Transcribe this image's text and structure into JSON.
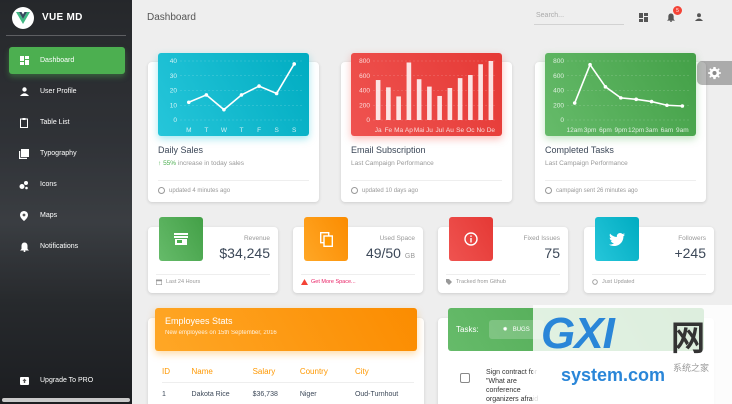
{
  "brand": {
    "name": "VUE MD"
  },
  "sidebar": {
    "items": [
      {
        "label": "Dashboard",
        "icon": "dashboard-icon",
        "active": true
      },
      {
        "label": "User Profile",
        "icon": "person-icon",
        "active": false
      },
      {
        "label": "Table List",
        "icon": "clipboard-icon",
        "active": false
      },
      {
        "label": "Typography",
        "icon": "library-books-icon",
        "active": false
      },
      {
        "label": "Icons",
        "icon": "bubble-chart-icon",
        "active": false
      },
      {
        "label": "Maps",
        "icon": "location-icon",
        "active": false
      },
      {
        "label": "Notifications",
        "icon": "bell-icon",
        "active": false
      }
    ],
    "upgrade": {
      "label": "Upgrade To PRO",
      "icon": "unarchive-icon"
    }
  },
  "topbar": {
    "title": "Dashboard",
    "search_placeholder": "Search...",
    "notification_count": "5"
  },
  "charts": [
    {
      "title": "Daily Sales",
      "sub_highlight": "55%",
      "sub_text": "increase in today sales",
      "footer": "updated 4 minutes ago",
      "color": "#26c6da"
    },
    {
      "title": "Email Subscription",
      "sub_text": "Last Campaign Performance",
      "footer": "updated 10 days ago",
      "color": "#ef5350"
    },
    {
      "title": "Completed Tasks",
      "sub_text": "Last Campaign Performance",
      "footer": "campaign sent 26 minutes ago",
      "color": "#66bb6a"
    }
  ],
  "chart_data": [
    {
      "type": "line",
      "categories": [
        "M",
        "T",
        "W",
        "T",
        "F",
        "S",
        "S"
      ],
      "values": [
        12,
        17,
        7,
        17,
        23,
        18,
        38
      ],
      "ylim": [
        0,
        40
      ],
      "yticks": [
        "0",
        "10",
        "20",
        "30",
        "40"
      ]
    },
    {
      "type": "bar",
      "categories": [
        "Ja",
        "Fe",
        "Ma",
        "Ap",
        "Mai",
        "Ju",
        "Jul",
        "Au",
        "Se",
        "Oc",
        "No",
        "De"
      ],
      "values": [
        542,
        443,
        320,
        780,
        553,
        453,
        326,
        434,
        568,
        610,
        756,
        895
      ],
      "ylim": [
        0,
        800
      ],
      "yticks": [
        "0",
        "200",
        "400",
        "600",
        "800"
      ]
    },
    {
      "type": "line",
      "categories": [
        "12am",
        "3pm",
        "6pm",
        "9pm",
        "12pm",
        "3am",
        "6am",
        "9am"
      ],
      "values": [
        230,
        750,
        450,
        300,
        280,
        250,
        200,
        190
      ],
      "ylim": [
        0,
        800
      ],
      "yticks": [
        "0",
        "200",
        "400",
        "600",
        "800"
      ]
    }
  ],
  "stats": [
    {
      "label": "Revenue",
      "value": "$34,245",
      "unit": "",
      "footer": "Last 24 Hours",
      "icon": "store-icon",
      "color": "#4caf50",
      "warn": false
    },
    {
      "label": "Used Space",
      "value": "49/50",
      "unit": "GB",
      "footer": "Get More Space...",
      "icon": "content-copy-icon",
      "color": "#ff9800",
      "warn": true
    },
    {
      "label": "Fixed Issues",
      "value": "75",
      "unit": "",
      "footer": "Tracked from Github",
      "icon": "info-outline-icon",
      "color": "#f44336",
      "warn": false
    },
    {
      "label": "Followers",
      "value": "+245",
      "unit": "",
      "footer": "Just Updated",
      "icon": "twitter-icon",
      "color": "#26c6da",
      "warn": false
    }
  ],
  "employees": {
    "title": "Employees Stats",
    "subtitle": "New employees on 15th September, 2016",
    "columns": [
      "ID",
      "Name",
      "Salary",
      "Country",
      "City"
    ],
    "rows": [
      [
        "1",
        "Dakota Rice",
        "$36,738",
        "Niger",
        "Oud-Turnhout"
      ]
    ]
  },
  "tasks": {
    "label": "Tasks:",
    "tab": "BUGS",
    "items": [
      {
        "text": "Sign contract for \"What are conference organizers afraid of?\"",
        "checked": false
      }
    ]
  },
  "watermark": {
    "main": "GXI",
    "cn": "网",
    "sub": "system.com",
    "small": "系统之家"
  }
}
